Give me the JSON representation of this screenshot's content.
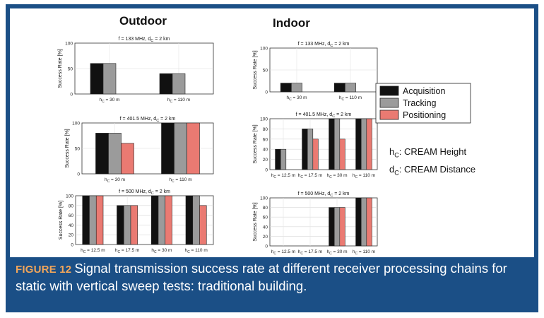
{
  "headings": {
    "outdoor": "Outdoor",
    "indoor": "Indoor"
  },
  "caption": {
    "label": "FIGURE 12",
    "text": "Signal transmission success rate at different receiver processing chains for static with vertical sweep tests: traditional building."
  },
  "annotations": {
    "hc_symbol": "h",
    "hc_sub": "C",
    "hc_text": ": CREAM Height",
    "dc_symbol": "d",
    "dc_sub": "C",
    "dc_text": ": CREAM Distance"
  },
  "legend": {
    "items": [
      {
        "name": "Acquisition",
        "color": "#111111"
      },
      {
        "name": "Tracking",
        "color": "#9b9b9b"
      },
      {
        "name": "Positioning",
        "color": "#ea7a72"
      }
    ]
  },
  "chart_data": [
    {
      "id": "outdoor-133",
      "type": "bar",
      "title": "f = 133 MHz, d_C = 2 km",
      "ylabel": "Success Rate [%]",
      "ylim": [
        0,
        100
      ],
      "yticks": [
        0,
        50,
        100
      ],
      "categories": [
        "h_C = 30 m",
        "h_C = 110 m"
      ],
      "series": [
        {
          "name": "Acquisition",
          "values": [
            60,
            40
          ]
        },
        {
          "name": "Tracking",
          "values": [
            60,
            40
          ]
        },
        {
          "name": "Positioning",
          "values": [
            0,
            0
          ]
        }
      ]
    },
    {
      "id": "indoor-133",
      "type": "bar",
      "title": "f = 133 MHz, d_C = 2 km",
      "ylabel": "Success Rate [%]",
      "ylim": [
        0,
        100
      ],
      "yticks": [
        0,
        50,
        100
      ],
      "categories": [
        "h_C = 30 m",
        "h_C = 110 m"
      ],
      "series": [
        {
          "name": "Acquisition",
          "values": [
            20,
            20
          ]
        },
        {
          "name": "Tracking",
          "values": [
            20,
            20
          ]
        },
        {
          "name": "Positioning",
          "values": [
            0,
            0
          ]
        }
      ]
    },
    {
      "id": "outdoor-401",
      "type": "bar",
      "title": "f = 401.5 MHz, d_C = 2 km",
      "ylabel": "Success Rate [%]",
      "ylim": [
        0,
        100
      ],
      "yticks": [
        0,
        50,
        100
      ],
      "categories": [
        "h_C = 30 m",
        "h_C = 110 m"
      ],
      "series": [
        {
          "name": "Acquisition",
          "values": [
            80,
            100
          ]
        },
        {
          "name": "Tracking",
          "values": [
            80,
            100
          ]
        },
        {
          "name": "Positioning",
          "values": [
            60,
            100
          ]
        }
      ]
    },
    {
      "id": "indoor-401",
      "type": "bar",
      "title": "f = 401.5 MHz, d_C = 2 km",
      "ylabel": "Success Rate [%]",
      "ylim": [
        0,
        100
      ],
      "yticks": [
        0,
        20,
        40,
        60,
        80,
        100
      ],
      "categories": [
        "h_C = 12.5 m",
        "h_C = 17.5 m",
        "h_C = 30 m",
        "h_C = 110 m"
      ],
      "series": [
        {
          "name": "Acquisition",
          "values": [
            40,
            80,
            100,
            100
          ]
        },
        {
          "name": "Tracking",
          "values": [
            40,
            80,
            100,
            100
          ]
        },
        {
          "name": "Positioning",
          "values": [
            0,
            60,
            60,
            100
          ]
        }
      ]
    },
    {
      "id": "outdoor-500",
      "type": "bar",
      "title": "f = 500 MHz, d_C = 2 km",
      "ylabel": "Success Rate [%]",
      "ylim": [
        0,
        100
      ],
      "yticks": [
        0,
        20,
        40,
        60,
        80,
        100
      ],
      "categories": [
        "h_C = 12.5 m",
        "h_C = 17.5 m",
        "h_C = 30 m",
        "h_C = 110 m"
      ],
      "series": [
        {
          "name": "Acquisition",
          "values": [
            100,
            80,
            100,
            100
          ]
        },
        {
          "name": "Tracking",
          "values": [
            100,
            80,
            100,
            100
          ]
        },
        {
          "name": "Positioning",
          "values": [
            100,
            80,
            100,
            80
          ]
        }
      ]
    },
    {
      "id": "indoor-500",
      "type": "bar",
      "title": "f = 500 MHz, d_C = 2 km",
      "ylabel": "Success Rate [%]",
      "ylim": [
        0,
        100
      ],
      "yticks": [
        0,
        20,
        40,
        60,
        80,
        100
      ],
      "categories": [
        "h_C = 12.5 m",
        "h_C = 17.5 m",
        "h_C = 30 m",
        "h_C = 110 m"
      ],
      "series": [
        {
          "name": "Acquisition",
          "values": [
            0,
            0,
            80,
            100
          ]
        },
        {
          "name": "Tracking",
          "values": [
            0,
            0,
            80,
            100
          ]
        },
        {
          "name": "Positioning",
          "values": [
            0,
            0,
            80,
            100
          ]
        }
      ]
    }
  ]
}
